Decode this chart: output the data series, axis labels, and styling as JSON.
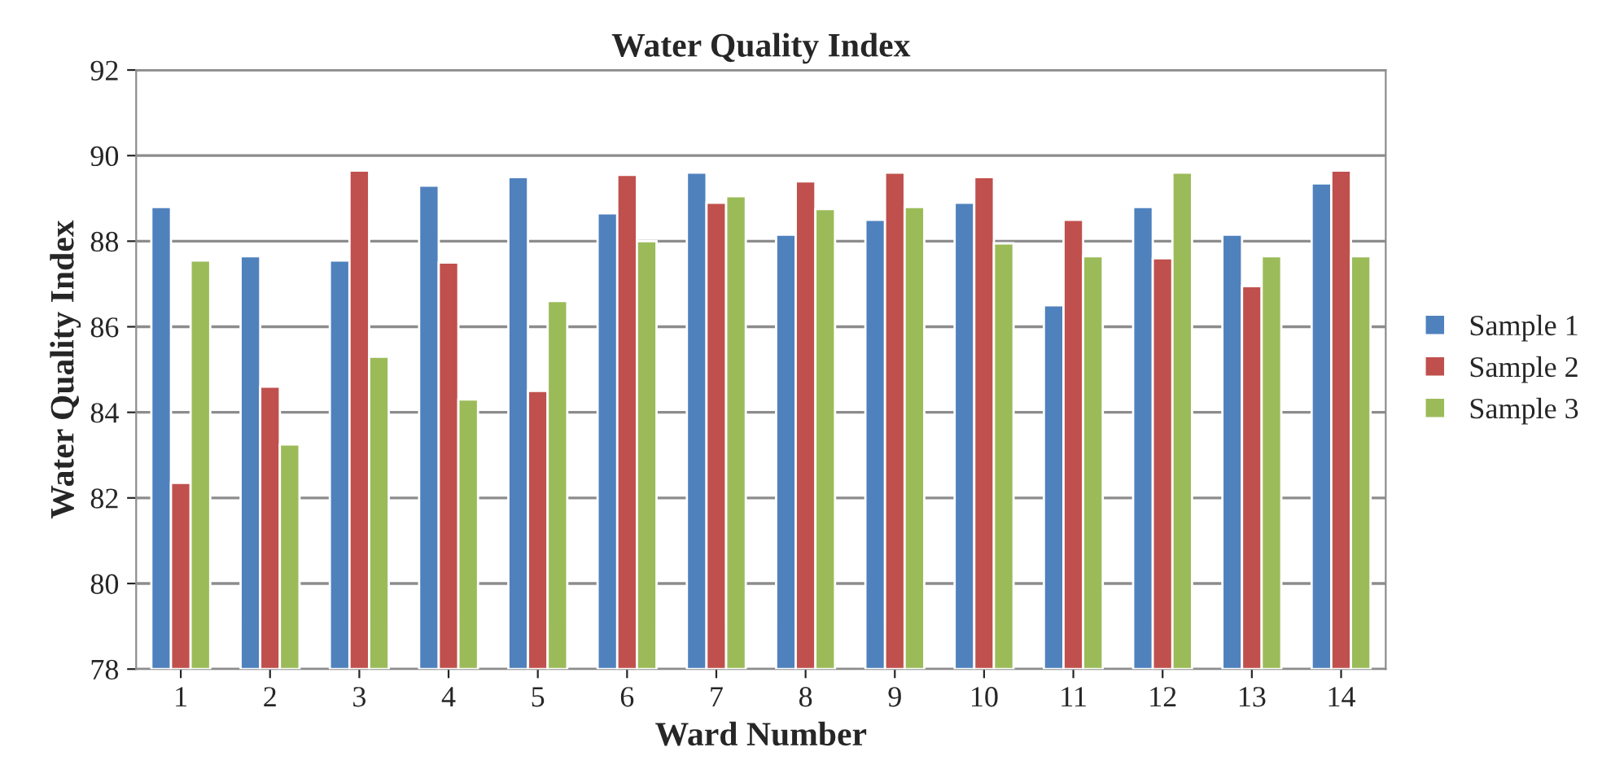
{
  "chart_data": {
    "type": "bar",
    "title": "Water Quality Index",
    "xlabel": "Ward Number",
    "ylabel": "Water Quality Index",
    "categories": [
      "1",
      "2",
      "3",
      "4",
      "5",
      "6",
      "7",
      "8",
      "9",
      "10",
      "11",
      "12",
      "13",
      "14"
    ],
    "series": [
      {
        "name": "Sample 1",
        "color": "#4f81bd",
        "values": [
          88.8,
          87.65,
          87.55,
          89.3,
          89.5,
          88.65,
          89.6,
          88.15,
          88.5,
          88.9,
          86.5,
          88.8,
          88.15,
          89.35
        ]
      },
      {
        "name": "Sample 2",
        "color": "#c0504d",
        "values": [
          82.35,
          84.6,
          89.65,
          87.5,
          84.5,
          89.55,
          88.9,
          89.4,
          89.6,
          89.5,
          88.5,
          87.6,
          86.95,
          89.65
        ]
      },
      {
        "name": "Sample 3",
        "color": "#9bbb59",
        "values": [
          87.55,
          83.25,
          85.3,
          84.3,
          86.6,
          88.0,
          89.05,
          88.75,
          88.8,
          87.95,
          87.65,
          89.6,
          87.65,
          87.65
        ]
      }
    ],
    "ylim": [
      78,
      92
    ],
    "yticks": [
      78,
      80,
      82,
      84,
      86,
      88,
      90,
      92
    ],
    "grid": "y",
    "legend": "right"
  }
}
